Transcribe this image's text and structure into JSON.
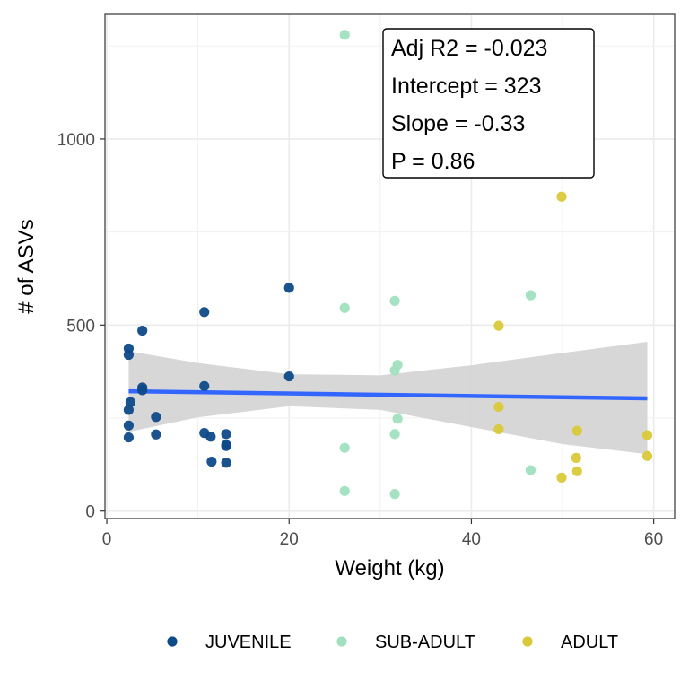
{
  "chart_data": {
    "type": "scatter",
    "xlabel": "Weight (kg)",
    "ylabel": "# of ASVs",
    "xlim": [
      -0.2,
      62.3
    ],
    "ylim": [
      -20,
      1335
    ],
    "x_ticks": [
      0,
      20,
      40,
      60
    ],
    "y_ticks": [
      0,
      500,
      1000
    ],
    "grid": true,
    "legend_position": "bottom",
    "series": [
      {
        "name": "JUVENILE",
        "color": "#0e4a87",
        "points": [
          {
            "x": 2.4,
            "y": 437
          },
          {
            "x": 2.4,
            "y": 420
          },
          {
            "x": 2.6,
            "y": 293
          },
          {
            "x": 2.4,
            "y": 272
          },
          {
            "x": 2.4,
            "y": 230
          },
          {
            "x": 2.4,
            "y": 198
          },
          {
            "x": 3.9,
            "y": 485
          },
          {
            "x": 3.9,
            "y": 332
          },
          {
            "x": 3.9,
            "y": 325
          },
          {
            "x": 5.4,
            "y": 253
          },
          {
            "x": 5.4,
            "y": 206
          },
          {
            "x": 10.7,
            "y": 535
          },
          {
            "x": 10.7,
            "y": 336
          },
          {
            "x": 10.7,
            "y": 210
          },
          {
            "x": 11.4,
            "y": 200
          },
          {
            "x": 11.5,
            "y": 133
          },
          {
            "x": 13.1,
            "y": 207
          },
          {
            "x": 13.1,
            "y": 178
          },
          {
            "x": 13.1,
            "y": 175
          },
          {
            "x": 13.1,
            "y": 130
          },
          {
            "x": 20.0,
            "y": 600
          },
          {
            "x": 20.0,
            "y": 362
          }
        ]
      },
      {
        "name": "SUB-ADULT",
        "color": "#a0e0bf",
        "points": [
          {
            "x": 26.1,
            "y": 1280
          },
          {
            "x": 26.1,
            "y": 546
          },
          {
            "x": 26.1,
            "y": 170
          },
          {
            "x": 26.1,
            "y": 54
          },
          {
            "x": 31.6,
            "y": 565
          },
          {
            "x": 31.9,
            "y": 393
          },
          {
            "x": 31.6,
            "y": 378
          },
          {
            "x": 31.9,
            "y": 248
          },
          {
            "x": 31.6,
            "y": 207
          },
          {
            "x": 31.6,
            "y": 46
          },
          {
            "x": 46.5,
            "y": 580
          },
          {
            "x": 46.5,
            "y": 110
          }
        ]
      },
      {
        "name": "ADULT",
        "color": "#d9c93a",
        "points": [
          {
            "x": 49.9,
            "y": 845
          },
          {
            "x": 43.0,
            "y": 498
          },
          {
            "x": 43.0,
            "y": 280
          },
          {
            "x": 43.0,
            "y": 220
          },
          {
            "x": 51.6,
            "y": 216
          },
          {
            "x": 51.5,
            "y": 143
          },
          {
            "x": 51.6,
            "y": 107
          },
          {
            "x": 49.9,
            "y": 90
          },
          {
            "x": 59.3,
            "y": 204
          },
          {
            "x": 59.3,
            "y": 148
          }
        ]
      }
    ],
    "trend_line": {
      "color": "#3366ff",
      "x": [
        2.4,
        59.3
      ],
      "y": [
        322,
        303
      ],
      "ribbon_color": "#d4d4d4",
      "ribbon": [
        {
          "x": 2.4,
          "lower": 213,
          "upper": 430
        },
        {
          "x": 10.0,
          "lower": 252,
          "upper": 398
        },
        {
          "x": 20.0,
          "lower": 282,
          "upper": 368
        },
        {
          "x": 30.0,
          "lower": 272,
          "upper": 365
        },
        {
          "x": 40.0,
          "lower": 226,
          "upper": 392
        },
        {
          "x": 50.0,
          "lower": 180,
          "upper": 425
        },
        {
          "x": 59.3,
          "lower": 153,
          "upper": 455
        }
      ]
    },
    "annotation": {
      "lines": [
        "Adj R2 =  -0.023",
        "Intercept = 323",
        "Slope = -0.33",
        "P = 0.86"
      ]
    }
  }
}
